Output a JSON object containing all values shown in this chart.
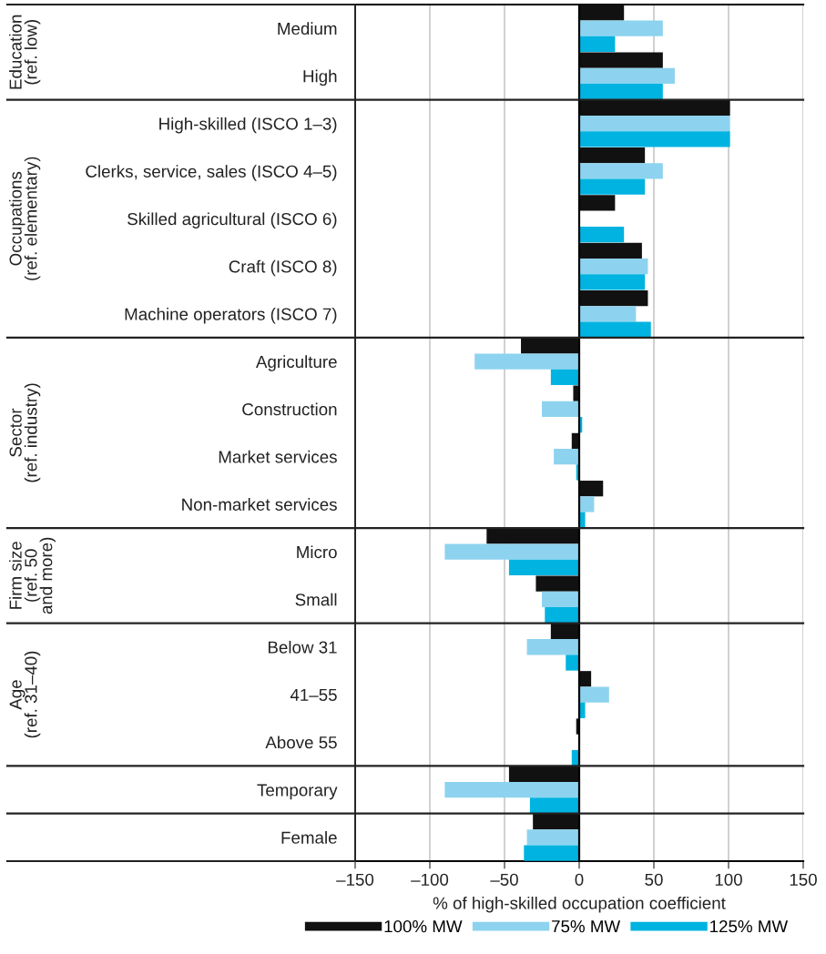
{
  "chart_data": {
    "type": "bar",
    "orientation": "horizontal",
    "categories": [
      "Medium",
      "High",
      "High-skilled (ISCO 1–3)",
      "Clerks, service, sales (ISCO 4–5)",
      "Skilled agricultural (ISCO 6)",
      "Craft (ISCO 8)",
      "Machine operators (ISCO 7)",
      "Agriculture",
      "Construction",
      "Market services",
      "Non-market services",
      "Micro",
      "Small",
      "Below 31",
      "41–55",
      "Above 55",
      "Temporary",
      "Female"
    ],
    "series": [
      {
        "name": "100% MW",
        "color": "#111111",
        "values": [
          30,
          56,
          101,
          44,
          24,
          42,
          46,
          -39,
          -4,
          -5,
          16,
          -62,
          -29,
          -19,
          8,
          -2,
          -47,
          -31
        ]
      },
      {
        "name": "75% MW",
        "color": "#8dd3ef",
        "values": [
          56,
          64,
          101,
          56,
          null,
          46,
          38,
          -70,
          -25,
          -17,
          10,
          -90,
          -25,
          -35,
          20,
          null,
          -90,
          -35
        ]
      },
      {
        "name": "125% MW",
        "color": "#00b3e0",
        "values": [
          24,
          56,
          101,
          44,
          30,
          44,
          48,
          -19,
          2,
          -2,
          4,
          -47,
          -23,
          -9,
          4,
          -5,
          -33,
          -37
        ]
      }
    ],
    "xlabel": "% of high-skilled occupation coefficient",
    "xlim": [
      -150,
      150
    ],
    "xticks": [
      {
        "value": -150,
        "label": "–150"
      },
      {
        "value": -100,
        "label": "–100"
      },
      {
        "value": -50,
        "label": "–50"
      },
      0,
      50,
      100,
      150
    ],
    "grid": "x",
    "legend": "bottom",
    "ref_lines": [
      {
        "axis": "x",
        "value": 0,
        "color": "#000000"
      }
    ],
    "annotations": [
      "Education\n(ref. low)",
      "Occupations\n(ref. elementary)",
      "Sector\n(ref. industry)",
      "Firm size\n(ref. 50\nand more)",
      "Age\n(ref. 31–40)"
    ]
  }
}
